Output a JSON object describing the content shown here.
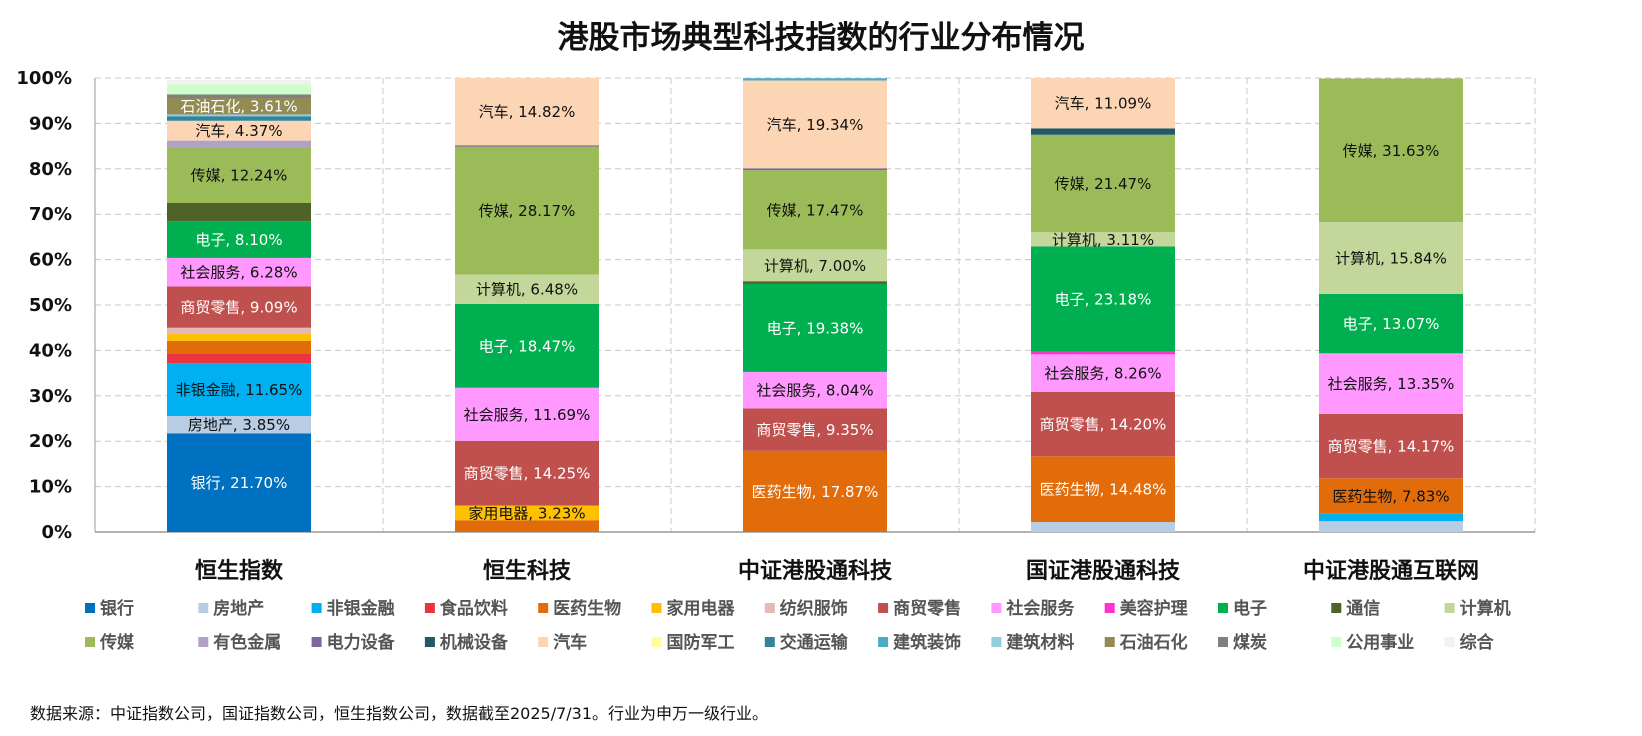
{
  "chart_data": {
    "type": "bar",
    "stacked": true,
    "title": "港股市场典型科技指数的行业分布情况",
    "ylim": [
      0,
      100
    ],
    "yticks": [
      "0%",
      "10%",
      "20%",
      "30%",
      "40%",
      "50%",
      "60%",
      "70%",
      "80%",
      "90%",
      "100%"
    ],
    "grid": true,
    "legend_position": "bottom",
    "categories": [
      "恒生指数",
      "恒生科技",
      "中证港股通科技",
      "国证港股通科技",
      "中证港股通互联网"
    ],
    "series": [
      {
        "name": "银行",
        "color": "#0070C0",
        "values": [
          21.7,
          0,
          0,
          0,
          0
        ]
      },
      {
        "name": "房地产",
        "color": "#B8CCE4",
        "values": [
          3.85,
          0,
          0,
          2.2,
          2.4
        ]
      },
      {
        "name": "非银金融",
        "color": "#00B0F0",
        "values": [
          11.65,
          0,
          0,
          0,
          1.6
        ]
      },
      {
        "name": "食品饮料",
        "color": "#E8353F",
        "values": [
          2.1,
          0,
          0,
          0,
          0
        ]
      },
      {
        "name": "医药生物",
        "color": "#E36C0A",
        "values": [
          2.8,
          2.6,
          17.87,
          14.48,
          7.83
        ]
      },
      {
        "name": "家用电器",
        "color": "#FFC000",
        "values": [
          1.5,
          3.23,
          0,
          0,
          0
        ]
      },
      {
        "name": "纺织服饰",
        "color": "#E6B9B8",
        "values": [
          1.4,
          0,
          0,
          0,
          0
        ]
      },
      {
        "name": "商贸零售",
        "color": "#C0504D",
        "values": [
          9.09,
          14.25,
          9.35,
          14.2,
          14.17
        ]
      },
      {
        "name": "社会服务",
        "color": "#FF99FF",
        "values": [
          6.28,
          11.69,
          8.04,
          8.26,
          13.35
        ]
      },
      {
        "name": "美容护理",
        "color": "#FF33CC",
        "values": [
          0,
          0,
          0,
          0.6,
          0
        ]
      },
      {
        "name": "电子",
        "color": "#00B050",
        "values": [
          8.1,
          18.47,
          19.38,
          23.18,
          13.07
        ]
      },
      {
        "name": "通信",
        "color": "#4F6228",
        "values": [
          4.0,
          0,
          0.6,
          0,
          0
        ]
      },
      {
        "name": "计算机",
        "color": "#C4D79B",
        "values": [
          0,
          6.48,
          7.0,
          3.11,
          15.84
        ]
      },
      {
        "name": "传媒",
        "color": "#9BBB59",
        "values": [
          12.24,
          28.17,
          17.47,
          21.47,
          31.63
        ]
      },
      {
        "name": "有色金属",
        "color": "#B1A0C7",
        "values": [
          1.5,
          0,
          0,
          0,
          0
        ]
      },
      {
        "name": "电力设备",
        "color": "#8064A2",
        "values": [
          0,
          0.3,
          0.4,
          0,
          0
        ]
      },
      {
        "name": "机械设备",
        "color": "#215967",
        "values": [
          0,
          0,
          0,
          1.4,
          0
        ]
      },
      {
        "name": "汽车",
        "color": "#FCD5B4",
        "values": [
          4.37,
          14.82,
          19.34,
          11.09,
          0
        ]
      },
      {
        "name": "国防军工",
        "color": "#FFFF99",
        "values": [
          0,
          0,
          0,
          0,
          0
        ]
      },
      {
        "name": "交通运输",
        "color": "#31849B",
        "values": [
          1.0,
          0,
          0,
          0,
          0
        ]
      },
      {
        "name": "建筑装饰",
        "color": "#4BACC6",
        "values": [
          0,
          0,
          0.5,
          0,
          0
        ]
      },
      {
        "name": "建筑材料",
        "color": "#92CDDC",
        "values": [
          0.4,
          0,
          0,
          0,
          0
        ]
      },
      {
        "name": "石油石化",
        "color": "#948A54",
        "values": [
          3.61,
          0,
          0,
          0,
          0
        ]
      },
      {
        "name": "煤炭",
        "color": "#808080",
        "values": [
          0.8,
          0,
          0,
          0,
          0
        ]
      },
      {
        "name": "公用事业",
        "color": "#CCFFCC",
        "values": [
          2.2,
          0,
          0,
          0,
          0
        ]
      },
      {
        "name": "综合",
        "color": "#F2F2F2",
        "values": [
          1.0,
          0,
          0,
          0,
          0
        ]
      }
    ],
    "data_labels": [
      {
        "category": 0,
        "series": "银行",
        "text": "银行, 21.70%",
        "color": "#ffffff"
      },
      {
        "category": 0,
        "series": "房地产",
        "text": "房地产, 3.85%",
        "color": "#111111"
      },
      {
        "category": 0,
        "series": "非银金融",
        "text": "非银金融, 11.65%",
        "color": "#111111"
      },
      {
        "category": 0,
        "series": "商贸零售",
        "text": "商贸零售, 9.09%",
        "color": "#ffffff"
      },
      {
        "category": 0,
        "series": "社会服务",
        "text": "社会服务, 6.28%",
        "color": "#111111"
      },
      {
        "category": 0,
        "series": "电子",
        "text": "电子, 8.10%",
        "color": "#ffffff"
      },
      {
        "category": 0,
        "series": "传媒",
        "text": "传媒, 12.24%",
        "color": "#111111"
      },
      {
        "category": 0,
        "series": "汽车",
        "text": "汽车, 4.37%",
        "color": "#111111"
      },
      {
        "category": 0,
        "series": "石油石化",
        "text": "石油石化, 3.61%",
        "color": "#ffffff"
      },
      {
        "category": 1,
        "series": "家用电器",
        "text": "家用电器, 3.23%",
        "color": "#111111"
      },
      {
        "category": 1,
        "series": "商贸零售",
        "text": "商贸零售, 14.25%",
        "color": "#ffffff"
      },
      {
        "category": 1,
        "series": "社会服务",
        "text": "社会服务, 11.69%",
        "color": "#111111"
      },
      {
        "category": 1,
        "series": "电子",
        "text": "电子, 18.47%",
        "color": "#ffffff"
      },
      {
        "category": 1,
        "series": "计算机",
        "text": "计算机, 6.48%",
        "color": "#111111"
      },
      {
        "category": 1,
        "series": "传媒",
        "text": "传媒, 28.17%",
        "color": "#111111"
      },
      {
        "category": 1,
        "series": "汽车",
        "text": "汽车, 14.82%",
        "color": "#111111"
      },
      {
        "category": 2,
        "series": "医药生物",
        "text": "医药生物, 17.87%",
        "color": "#ffffff"
      },
      {
        "category": 2,
        "series": "商贸零售",
        "text": "商贸零售, 9.35%",
        "color": "#ffffff"
      },
      {
        "category": 2,
        "series": "社会服务",
        "text": "社会服务, 8.04%",
        "color": "#111111"
      },
      {
        "category": 2,
        "series": "电子",
        "text": "电子, 19.38%",
        "color": "#ffffff"
      },
      {
        "category": 2,
        "series": "计算机",
        "text": "计算机, 7.00%",
        "color": "#111111"
      },
      {
        "category": 2,
        "series": "传媒",
        "text": "传媒, 17.47%",
        "color": "#111111"
      },
      {
        "category": 2,
        "series": "汽车",
        "text": "汽车, 19.34%",
        "color": "#111111"
      },
      {
        "category": 3,
        "series": "医药生物",
        "text": "医药生物, 14.48%",
        "color": "#ffffff"
      },
      {
        "category": 3,
        "series": "商贸零售",
        "text": "商贸零售, 14.20%",
        "color": "#ffffff"
      },
      {
        "category": 3,
        "series": "社会服务",
        "text": "社会服务, 8.26%",
        "color": "#111111"
      },
      {
        "category": 3,
        "series": "电子",
        "text": "电子, 23.18%",
        "color": "#ffffff"
      },
      {
        "category": 3,
        "series": "计算机",
        "text": "计算机, 3.11%",
        "color": "#111111"
      },
      {
        "category": 3,
        "series": "传媒",
        "text": "传媒, 21.47%",
        "color": "#111111"
      },
      {
        "category": 3,
        "series": "汽车",
        "text": "汽车, 11.09%",
        "color": "#111111"
      },
      {
        "category": 4,
        "series": "医药生物",
        "text": "医药生物, 7.83%",
        "color": "#111111"
      },
      {
        "category": 4,
        "series": "商贸零售",
        "text": "商贸零售, 14.17%",
        "color": "#ffffff"
      },
      {
        "category": 4,
        "series": "社会服务",
        "text": "社会服务, 13.35%",
        "color": "#111111"
      },
      {
        "category": 4,
        "series": "电子",
        "text": "电子, 13.07%",
        "color": "#ffffff"
      },
      {
        "category": 4,
        "series": "计算机",
        "text": "计算机, 15.84%",
        "color": "#111111"
      },
      {
        "category": 4,
        "series": "传媒",
        "text": "传媒, 31.63%",
        "color": "#111111"
      }
    ]
  },
  "source_note": "数据来源：中证指数公司，国证指数公司，恒生指数公司，数据截至2025/7/31。行业为申万一级行业。"
}
